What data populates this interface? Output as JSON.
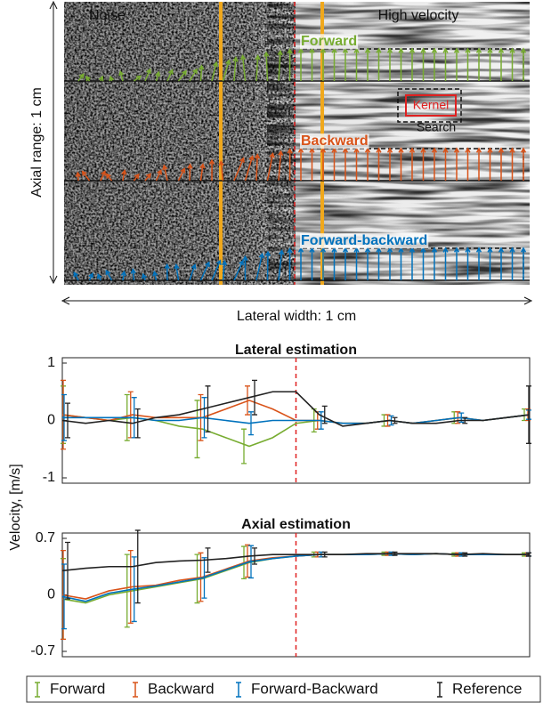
{
  "image_panel": {
    "region_left": "Noise",
    "region_right": "High velocity",
    "rows": [
      {
        "label": "Forward"
      },
      {
        "label": "Backward"
      },
      {
        "label": "Forward-backward"
      }
    ],
    "kernel": "Kernel",
    "search": "Search",
    "ylabel": "Axial range: 1 cm",
    "xlabel": "Lateral width: 1 cm"
  },
  "shared_ylabel": "Velocity, [m/s]",
  "chart_data": [
    {
      "type": "line",
      "title": "Lateral estimation",
      "x": [
        0,
        0.05,
        0.1,
        0.15,
        0.2,
        0.25,
        0.3,
        0.35,
        0.4,
        0.45,
        0.5,
        0.55,
        0.6,
        0.65,
        0.7,
        0.75,
        0.8,
        0.85,
        0.9,
        0.95,
        1.0
      ],
      "xlim": [
        0,
        1
      ],
      "ylim": [
        -1,
        1
      ],
      "yticks": [
        -1,
        0,
        1
      ],
      "vline": 0.5,
      "series": [
        {
          "name": "Forward",
          "color": "#77ac30",
          "values": [
            0.1,
            0.05,
            0.0,
            0.05,
            0.0,
            -0.1,
            -0.15,
            -0.3,
            -0.45,
            -0.3,
            -0.05,
            0.0,
            -0.05,
            -0.05,
            0.0,
            -0.05,
            0.0,
            0.05,
            0.0,
            0.05,
            0.1
          ],
          "errors": [
            0.5,
            null,
            null,
            0.4,
            null,
            null,
            0.5,
            null,
            0.3,
            null,
            null,
            0.2,
            null,
            null,
            0.1,
            null,
            null,
            0.1,
            null,
            null,
            0.1
          ]
        },
        {
          "name": "Backward",
          "color": "#d95319",
          "values": [
            0.1,
            0.05,
            0.0,
            0.1,
            0.05,
            0.05,
            0.05,
            0.2,
            0.35,
            0.2,
            0.0,
            0.0,
            -0.05,
            -0.05,
            0.0,
            -0.05,
            0.0,
            0.05,
            0.0,
            0.05,
            0.1
          ],
          "errors": [
            0.6,
            null,
            null,
            0.4,
            null,
            null,
            0.4,
            null,
            0.25,
            null,
            null,
            0.15,
            null,
            null,
            0.1,
            null,
            null,
            0.1,
            null,
            null,
            0.1
          ]
        },
        {
          "name": "Forward-Backward",
          "color": "#0072bd",
          "values": [
            0.05,
            0.05,
            0.05,
            0.05,
            0.0,
            0.0,
            0.05,
            0.0,
            -0.05,
            0.0,
            0.0,
            0.0,
            -0.05,
            -0.05,
            0.0,
            -0.05,
            0.0,
            0.05,
            0.0,
            0.05,
            0.1
          ],
          "errors": [
            0.4,
            null,
            null,
            0.35,
            null,
            null,
            0.35,
            null,
            0.2,
            null,
            null,
            0.15,
            null,
            null,
            0.08,
            null,
            null,
            0.08,
            null,
            null,
            0.08
          ]
        },
        {
          "name": "Reference",
          "color": "#222222",
          "values": [
            0.0,
            -0.05,
            0.0,
            -0.05,
            0.05,
            0.1,
            0.2,
            0.3,
            0.4,
            0.5,
            0.5,
            0.1,
            -0.1,
            -0.05,
            0.0,
            -0.05,
            -0.05,
            0.0,
            0.0,
            0.05,
            0.1
          ],
          "errors": [
            0.3,
            null,
            null,
            0.25,
            null,
            null,
            0.4,
            null,
            0.3,
            null,
            null,
            0.15,
            null,
            null,
            0.05,
            null,
            null,
            0.05,
            null,
            null,
            0.5
          ]
        }
      ]
    },
    {
      "type": "line",
      "title": "Axial estimation",
      "x": [
        0,
        0.05,
        0.1,
        0.15,
        0.2,
        0.25,
        0.3,
        0.35,
        0.4,
        0.45,
        0.5,
        0.55,
        0.6,
        0.65,
        0.7,
        0.75,
        0.8,
        0.85,
        0.9,
        0.95,
        1.0
      ],
      "xlim": [
        0,
        1
      ],
      "ylim": [
        -0.7,
        0.7
      ],
      "yticks": [
        -0.7,
        0,
        0.7
      ],
      "vline": 0.5,
      "series": [
        {
          "color": "#77ac30",
          "values": [
            -0.05,
            -0.1,
            0.0,
            0.05,
            0.1,
            0.15,
            0.2,
            0.3,
            0.4,
            0.45,
            0.48,
            0.5,
            0.5,
            0.5,
            0.51,
            0.5,
            0.51,
            0.5,
            0.5,
            0.5,
            0.5
          ],
          "errors": [
            0.5,
            null,
            null,
            0.45,
            null,
            null,
            0.3,
            null,
            0.2,
            null,
            null,
            0.03,
            null,
            null,
            0.02,
            null,
            null,
            0.02,
            null,
            null,
            0.02
          ]
        },
        {
          "color": "#d95319",
          "values": [
            0.0,
            -0.05,
            0.05,
            0.1,
            0.12,
            0.18,
            0.22,
            0.32,
            0.42,
            0.46,
            0.48,
            0.5,
            0.5,
            0.5,
            0.51,
            0.5,
            0.51,
            0.5,
            0.5,
            0.5,
            0.5
          ],
          "errors": [
            0.55,
            null,
            null,
            0.45,
            null,
            null,
            0.3,
            null,
            0.2,
            null,
            null,
            0.03,
            null,
            null,
            0.02,
            null,
            null,
            0.02,
            null,
            null,
            0.02
          ]
        },
        {
          "color": "#0072bd",
          "values": [
            -0.02,
            -0.08,
            0.02,
            0.07,
            0.11,
            0.16,
            0.21,
            0.31,
            0.41,
            0.45,
            0.48,
            0.5,
            0.5,
            0.5,
            0.51,
            0.5,
            0.51,
            0.5,
            0.5,
            0.5,
            0.5
          ],
          "errors": [
            0.4,
            null,
            null,
            0.4,
            null,
            null,
            0.25,
            null,
            0.2,
            null,
            null,
            0.03,
            null,
            null,
            0.02,
            null,
            null,
            0.02,
            null,
            null,
            0.02
          ]
        },
        {
          "color": "#222222",
          "values": [
            0.3,
            0.33,
            0.35,
            0.35,
            0.4,
            0.42,
            0.43,
            0.45,
            0.48,
            0.5,
            0.5,
            0.5,
            0.5,
            0.51,
            0.51,
            0.51,
            0.51,
            0.5,
            0.51,
            0.5,
            0.5
          ],
          "errors": [
            0.35,
            null,
            null,
            0.45,
            null,
            null,
            0.15,
            null,
            0.1,
            null,
            null,
            0.03,
            null,
            null,
            0.02,
            null,
            null,
            0.02,
            null,
            null,
            0.02
          ]
        }
      ]
    }
  ]
}
